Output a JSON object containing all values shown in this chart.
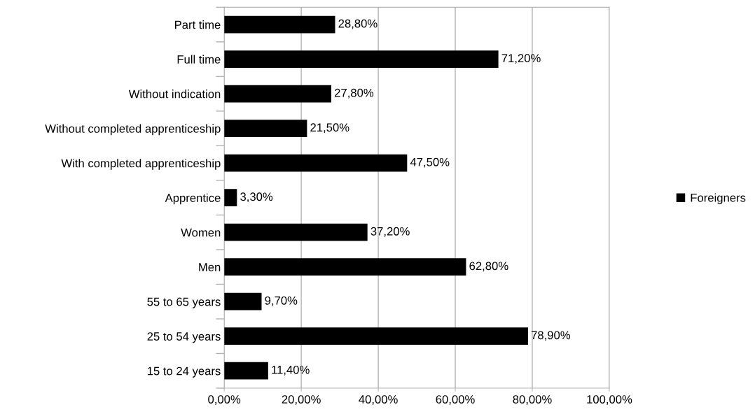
{
  "chart_data": {
    "type": "bar",
    "orientation": "horizontal",
    "categories": [
      "Part time",
      "Full time",
      "Without indication",
      "Without completed apprenticeship",
      "With completed apprenticeship",
      "Apprentice",
      "Women",
      "Men",
      "55 to 65 years",
      "25 to 54 years",
      "15 to 24 years"
    ],
    "series": [
      {
        "name": "Foreigners",
        "color": "#000000",
        "values": [
          28.8,
          71.2,
          27.8,
          21.5,
          47.5,
          3.3,
          37.2,
          62.8,
          9.7,
          78.9,
          11.4
        ],
        "value_labels": [
          "28,80%",
          "71,20%",
          "27,80%",
          "21,50%",
          "47,50%",
          "3,30%",
          "37,20%",
          "62,80%",
          "9,70%",
          "78,90%",
          "11,40%"
        ]
      }
    ],
    "xlim": [
      0,
      100
    ],
    "xticks": [
      {
        "value": 0,
        "label": "0,00%"
      },
      {
        "value": 20,
        "label": "20,00%"
      },
      {
        "value": 40,
        "label": "40,00%"
      },
      {
        "value": 60,
        "label": "60,00%"
      },
      {
        "value": 80,
        "label": "80,00%"
      },
      {
        "value": 100,
        "label": "100,00%"
      }
    ],
    "grid": "x",
    "legend": "right"
  }
}
